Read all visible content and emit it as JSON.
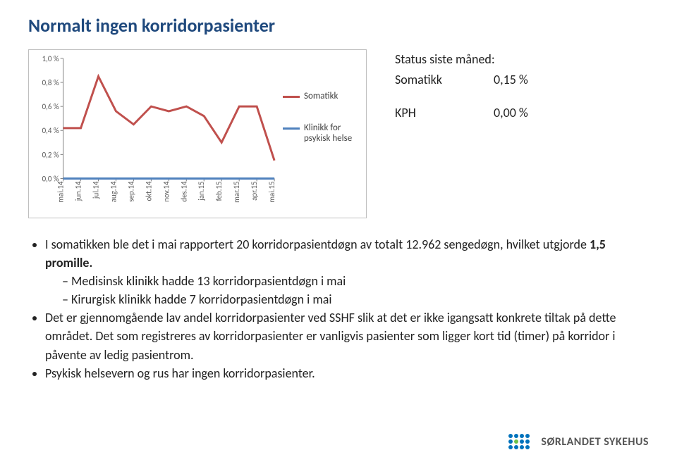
{
  "title": "Normalt ingen korridorpasienter",
  "chart": {
    "type": "line",
    "y_ticks": [
      "1,0 %",
      "0,8 %",
      "0,6 %",
      "0,4 %",
      "0,2 %",
      "0,0 %"
    ],
    "y_min": 0.0,
    "y_max": 1.0,
    "x_labels": [
      "mai.14",
      "jun.14",
      "jul.14",
      "aug.14",
      "sep.14",
      "okt.14",
      "nov.14",
      "des.14",
      "jan.15",
      "feb.15",
      "mar.15",
      "apr.15",
      "mai.15"
    ],
    "series": [
      {
        "name": "Somatikk",
        "color": "#c0504d",
        "line_width": 3,
        "values": [
          0.42,
          0.42,
          0.85,
          0.56,
          0.45,
          0.6,
          0.56,
          0.6,
          0.52,
          0.3,
          0.6,
          0.6,
          0.15
        ]
      },
      {
        "name": "Klinikk for psykisk helse",
        "color": "#4f81bd",
        "line_width": 3,
        "values": [
          0.0,
          0.0,
          0.0,
          0.0,
          0.0,
          0.0,
          0.0,
          0.0,
          0.0,
          0.0,
          0.0,
          0.0,
          0.0
        ]
      }
    ],
    "background_color": "#ffffff",
    "axis_color": "#808080",
    "tick_font_size": 11
  },
  "legend": {
    "items": [
      {
        "label": "Somatikk",
        "color": "#c0504d"
      },
      {
        "label": "Klinikk for psykisk helse",
        "color": "#4f81bd"
      }
    ]
  },
  "status": {
    "heading": "Status siste måned:",
    "rows": [
      {
        "label": "Somatikk",
        "value": "0,15 %"
      },
      {
        "label": "KPH",
        "value": "0,00 %"
      }
    ]
  },
  "bullets": {
    "b1_pre": "I somatikken ble det i mai rapportert 20 korridorpasientdøgn av totalt 12.962 sengedøgn, hvilket utgjorde ",
    "b1_bold": "1,5 promille.",
    "b1_sub1": "Medisinsk klinikk hadde 13 korridorpasientdøgn i mai",
    "b1_sub2": "Kirurgisk klinikk hadde 7 korridorpasientdøgn i mai",
    "b2": "Det er gjennomgående lav andel korridorpasienter ved SSHF slik at det er ikke igangsatt konkrete tiltak på dette området. Det som registreres av korridorpasienter er vanligvis pasienter som ligger kort tid (timer) på korridor i påvente av ledig pasientrom.",
    "b3": "Psykisk helsevern og rus har ingen korridorpasienter."
  },
  "footer": {
    "org_name": "SØRLANDET SYKEHUS"
  }
}
